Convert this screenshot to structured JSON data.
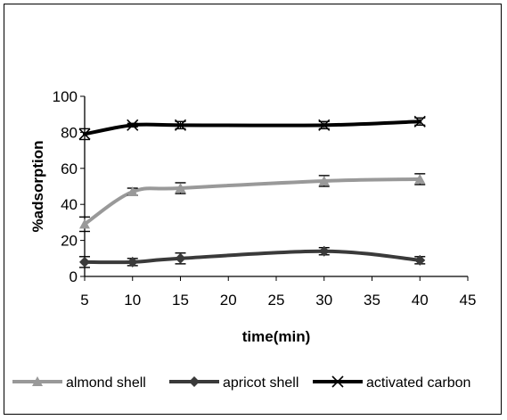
{
  "chart_data": {
    "type": "line",
    "xlabel": "time(min)",
    "ylabel": "%adsorption",
    "xlim": [
      5,
      45
    ],
    "ylim": [
      0,
      100
    ],
    "x_ticks": [
      5,
      10,
      15,
      20,
      25,
      30,
      35,
      40,
      45
    ],
    "y_ticks": [
      0,
      20,
      40,
      60,
      80,
      100
    ],
    "grid": false,
    "legend_position": "bottom",
    "error_bars": true,
    "series": [
      {
        "name": "almond shell",
        "color": "#999999",
        "marker": "triangle",
        "x": [
          5,
          10,
          15,
          30,
          40
        ],
        "y": [
          29,
          47,
          49,
          53,
          54
        ],
        "error": [
          4,
          2,
          3,
          3,
          3
        ]
      },
      {
        "name": "apricot shell",
        "color": "#3a3a3a",
        "marker": "diamond",
        "x": [
          5,
          10,
          15,
          30,
          40
        ],
        "y": [
          8,
          8,
          10,
          14,
          9
        ],
        "error": [
          3,
          2,
          3,
          2,
          2
        ]
      },
      {
        "name": "activated carbon",
        "color": "#000000",
        "marker": "x",
        "x": [
          5,
          10,
          15,
          30,
          40
        ],
        "y": [
          79,
          84,
          84,
          84,
          86
        ],
        "error": [
          3,
          1,
          2,
          2,
          2
        ]
      }
    ]
  }
}
